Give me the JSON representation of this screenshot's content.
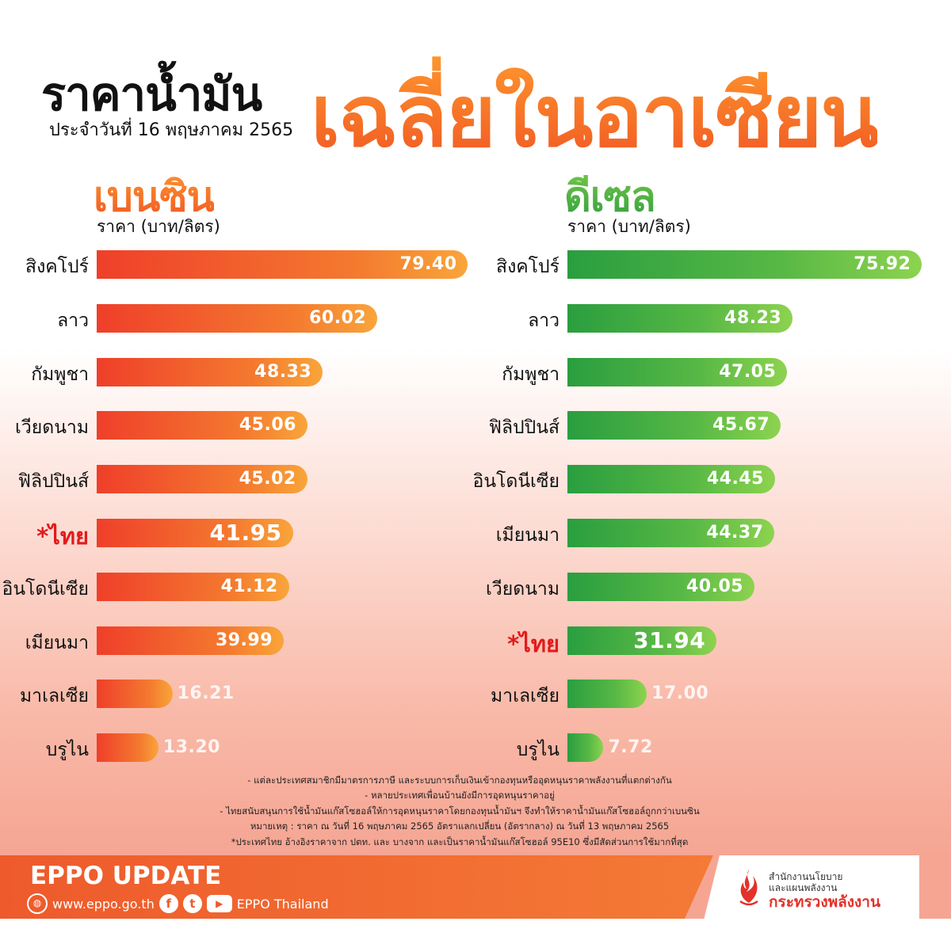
{
  "header": {
    "title": "ราคาน้ำมัน",
    "subtitle": "ประจำวันที่ 16 พฤษภาคม 2565",
    "highlight_title": "เฉลี่ยในอาเซียน"
  },
  "chart_data": [
    {
      "type": "bar",
      "orientation": "horizontal",
      "title": "เบนซิน",
      "subtitle": "ราคา (บาท/ลิตร)",
      "categories": [
        "สิงคโปร์",
        "ลาว",
        "กัมพูชา",
        "เวียดนาม",
        "ฟิลิปปินส์",
        "*ไทย",
        "อินโดนีเซีย",
        "เมียนมา",
        "มาเลเซีย",
        "บรูไน"
      ],
      "values": [
        79.4,
        60.02,
        48.33,
        45.06,
        45.02,
        41.95,
        41.12,
        39.99,
        16.21,
        13.2
      ],
      "value_labels": [
        "79.40",
        "60.02",
        "48.33",
        "45.06",
        "45.02",
        "41.95",
        "41.12",
        "39.99",
        "16.21",
        "13.20"
      ],
      "highlight_index": 5,
      "bar_color": "#f26b26",
      "xlim": [
        0,
        80
      ]
    },
    {
      "type": "bar",
      "orientation": "horizontal",
      "title": "ดีเซล",
      "subtitle": "ราคา (บาท/ลิตร)",
      "categories": [
        "สิงคโปร์",
        "ลาว",
        "กัมพูชา",
        "ฟิลิปปินส์",
        "อินโดนีเซีย",
        "เมียนมา",
        "เวียดนาม",
        "*ไทย",
        "มาเลเซีย",
        "บรูไน"
      ],
      "values": [
        75.92,
        48.23,
        47.05,
        45.67,
        44.45,
        44.37,
        40.05,
        31.94,
        17.0,
        7.72
      ],
      "value_labels": [
        "75.92",
        "48.23",
        "47.05",
        "45.67",
        "44.45",
        "44.37",
        "40.05",
        "31.94",
        "17.00",
        "7.72"
      ],
      "highlight_index": 7,
      "bar_color": "#3aaa3f",
      "xlim": [
        0,
        74
      ]
    }
  ],
  "notes": [
    "- แต่ละประเทศสมาชิกมีมาตรการภาษี และระบบการเก็บเงินเข้ากองทุนหรืออุดหนุนราคาพลังงานที่แตกต่างกัน",
    "- หลายประเทศเพื่อนบ้านยังมีการอุดหนุนราคาอยู่",
    "- ไทยสนับสนุนการใช้น้ำมันแก๊สโซฮอล์ให้การอุดหนุนราคาโดยกองทุนน้ำมันฯ จึงทำให้ราคาน้ำมันแก๊สโซฮอล์ถูกกว่าเบนซิน",
    "หมายเหตุ : ราคา ณ วันที่ 16 พฤษภาคม 2565 อัตราแลกเปลี่ยน (อัตรากลาง) ณ วันที่ 13 พฤษภาคม 2565",
    "*ประเทศไทย อ้างอิงราคาจาก ปตท. และ บางจาก และเป็นราคาน้ำมันแก๊สโซฮอล์ 95E10 ซึ่งมีสัดส่วนการใช้มากที่สุด"
  ],
  "footer": {
    "brand": "EPPO UPDATE",
    "website": "www.eppo.go.th",
    "social_name": "EPPO Thailand",
    "icons": [
      "globe-icon",
      "facebook-icon",
      "twitter-icon",
      "youtube-icon"
    ],
    "ministry_line1": "สำนักงานนโยบาย",
    "ministry_line2": "และแผนพลังงาน",
    "ministry_line3": "กระทรวงพลังงาน"
  },
  "colors": {
    "accent_orange": "#f26b26",
    "accent_green": "#3aaa3f",
    "highlight_red": "#e21b1b"
  }
}
